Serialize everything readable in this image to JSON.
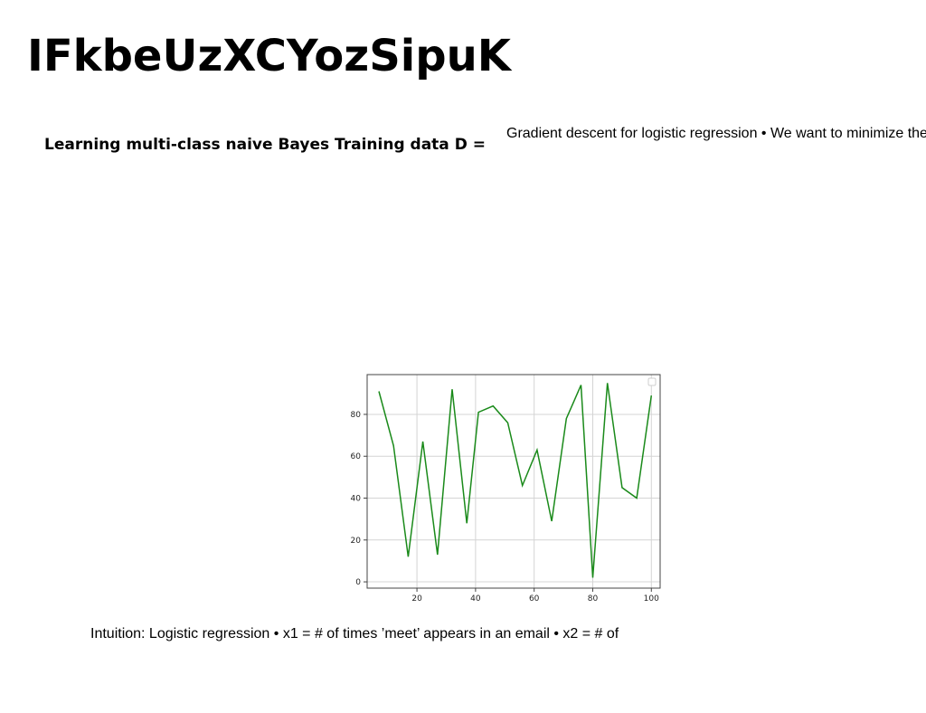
{
  "page": {
    "title": "IFkbeUzXCYozSipuK",
    "left_heading": "Learning multi-class naive Bayes Training data D =",
    "right_text": "Gradient descent for logistic regression • We want to minimize the",
    "bottom_text": "Intuition: Logistic regression • x1 = # of times ’meet’ appears in an email • x2 = # of"
  },
  "chart_data": {
    "type": "line",
    "title": "",
    "xlabel": "",
    "ylabel": "",
    "xlim": [
      3,
      103
    ],
    "ylim": [
      -3,
      99
    ],
    "xticks": [
      20,
      40,
      60,
      80,
      100
    ],
    "yticks": [
      0,
      20,
      40,
      60,
      80
    ],
    "grid": true,
    "legend": "top-right",
    "series": [
      {
        "color": "#1a8a1a",
        "x": [
          7,
          12,
          17,
          22,
          27,
          32,
          37,
          41,
          46,
          51,
          56,
          61,
          66,
          71,
          76,
          80,
          85,
          90,
          95,
          100
        ],
        "y": [
          91,
          65,
          12,
          67,
          13,
          92,
          28,
          81,
          84,
          76,
          46,
          63,
          29,
          78,
          94,
          2,
          95,
          45,
          40,
          89
        ]
      }
    ]
  }
}
